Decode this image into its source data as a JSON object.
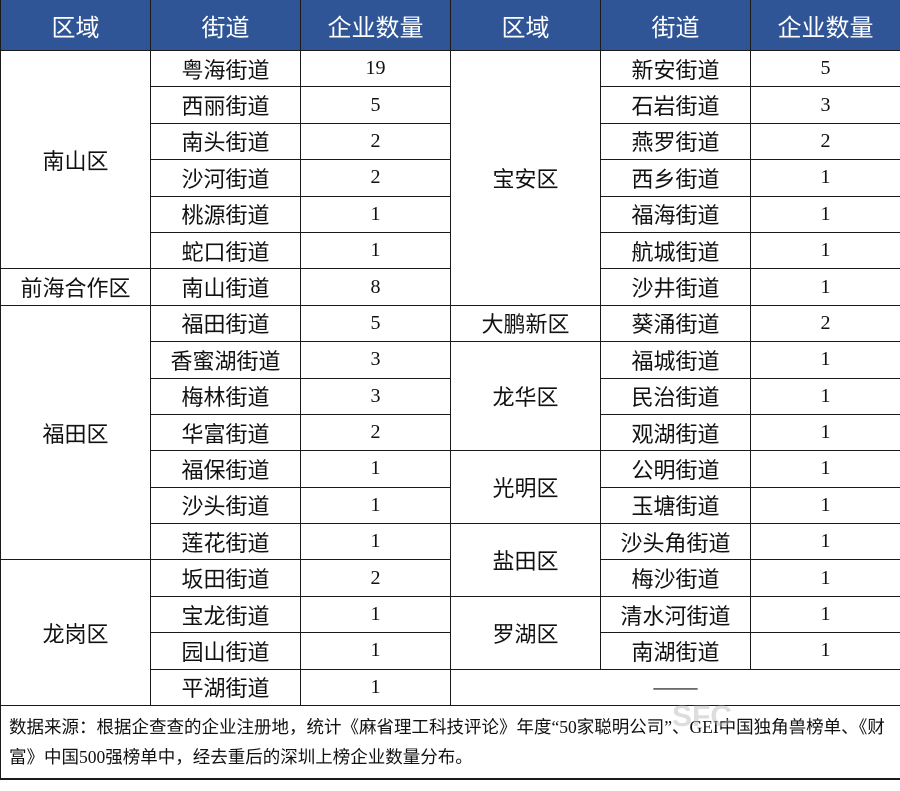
{
  "headers": [
    "区域",
    "街道",
    "企业数量",
    "区域",
    "街道",
    "企业数量"
  ],
  "left": [
    {
      "district": "南山区",
      "streets": [
        [
          "粤海街道",
          "19"
        ],
        [
          "西丽街道",
          "5"
        ],
        [
          "南头街道",
          "2"
        ],
        [
          "沙河街道",
          "2"
        ],
        [
          "桃源街道",
          "1"
        ],
        [
          "蛇口街道",
          "1"
        ]
      ]
    },
    {
      "district": "前海合作区",
      "streets": [
        [
          "南山街道",
          "8"
        ]
      ]
    },
    {
      "district": "福田区",
      "streets": [
        [
          "福田街道",
          "5"
        ],
        [
          "香蜜湖街道",
          "3"
        ],
        [
          "梅林街道",
          "3"
        ],
        [
          "华富街道",
          "2"
        ],
        [
          "福保街道",
          "1"
        ],
        [
          "沙头街道",
          "1"
        ],
        [
          "莲花街道",
          "1"
        ]
      ]
    },
    {
      "district": "龙岗区",
      "streets": [
        [
          "坂田街道",
          "2"
        ],
        [
          "宝龙街道",
          "1"
        ],
        [
          "园山街道",
          "1"
        ],
        [
          "平湖街道",
          "1"
        ]
      ]
    }
  ],
  "right": [
    {
      "district": "宝安区",
      "streets": [
        [
          "新安街道",
          "5"
        ],
        [
          "石岩街道",
          "3"
        ],
        [
          "燕罗街道",
          "2"
        ],
        [
          "西乡街道",
          "1"
        ],
        [
          "福海街道",
          "1"
        ],
        [
          "航城街道",
          "1"
        ],
        [
          "沙井街道",
          "1"
        ]
      ]
    },
    {
      "district": "大鹏新区",
      "streets": [
        [
          "葵涌街道",
          "2"
        ]
      ]
    },
    {
      "district": "龙华区",
      "streets": [
        [
          "福城街道",
          "1"
        ],
        [
          "民治街道",
          "1"
        ],
        [
          "观湖街道",
          "1"
        ]
      ]
    },
    {
      "district": "光明区",
      "streets": [
        [
          "公明街道",
          "1"
        ],
        [
          "玉塘街道",
          "1"
        ]
      ]
    },
    {
      "district": "盐田区",
      "streets": [
        [
          "沙头角街道",
          "1"
        ],
        [
          "梅沙街道",
          "1"
        ]
      ]
    },
    {
      "district": "罗湖区",
      "streets": [
        [
          "清水河街道",
          "1"
        ],
        [
          "南湖街道",
          "1"
        ]
      ]
    }
  ],
  "empty_cell": "——",
  "footnote": "数据来源：根据企查查的企业注册地，统计《麻省理工科技评论》年度“50家聪明公司”、GEI中国独角兽榜单、《财富》中国500强榜单中，经去重后的深圳上榜企业数量分布。",
  "watermark": "SFC 南方财经全媒体集团",
  "colors": {
    "header_bg": "#2f5597",
    "header_text": "#ffffff"
  }
}
